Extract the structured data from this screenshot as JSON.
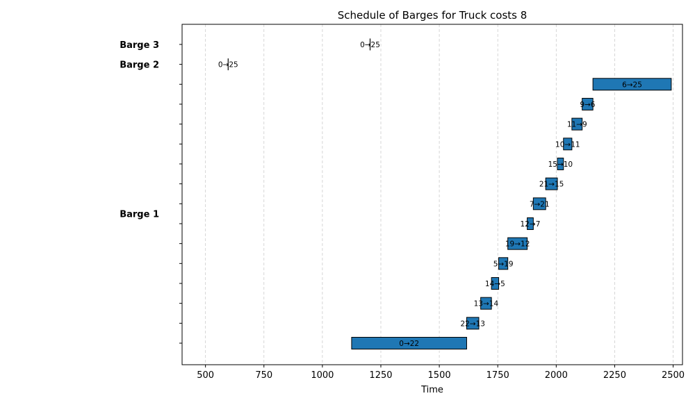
{
  "chart_data": {
    "type": "gantt",
    "title": "Schedule of Barges for Truck costs 8",
    "xlabel": "Time",
    "ylabel": "",
    "xlim": [
      400,
      2540
    ],
    "xticks": [
      500,
      750,
      1000,
      1250,
      1500,
      1750,
      2000,
      2250,
      2500
    ],
    "grid": "vertical-dashed",
    "bar_color": "#1f77b4",
    "rows": 16,
    "groups": [
      {
        "name": "Barge 3",
        "row": 15
      },
      {
        "name": "Barge 2",
        "row": 14
      },
      {
        "name": "Barge 1",
        "row": 6.5
      }
    ],
    "tasks": [
      {
        "label": "0→22",
        "start": 1125,
        "end": 1617,
        "row": 0
      },
      {
        "label": "22→13",
        "start": 1617,
        "end": 1669,
        "row": 1
      },
      {
        "label": "13→14",
        "start": 1677,
        "end": 1723,
        "row": 2
      },
      {
        "label": "14→5",
        "start": 1723,
        "end": 1754,
        "row": 3
      },
      {
        "label": "5→19",
        "start": 1754,
        "end": 1793,
        "row": 4
      },
      {
        "label": "19→12",
        "start": 1793,
        "end": 1876,
        "row": 5
      },
      {
        "label": "12→7",
        "start": 1876,
        "end": 1902,
        "row": 6
      },
      {
        "label": "7→21",
        "start": 1902,
        "end": 1955,
        "row": 7
      },
      {
        "label": "21→15",
        "start": 1955,
        "end": 2005,
        "row": 8
      },
      {
        "label": "15→10",
        "start": 2005,
        "end": 2031,
        "row": 9
      },
      {
        "label": "10→11",
        "start": 2031,
        "end": 2067,
        "row": 10
      },
      {
        "label": "11→9",
        "start": 2067,
        "end": 2111,
        "row": 11
      },
      {
        "label": "9→6",
        "start": 2111,
        "end": 2157,
        "row": 12
      },
      {
        "label": "6→25",
        "start": 2157,
        "end": 2492,
        "row": 13
      },
      {
        "label": "0→25",
        "start": 597,
        "end": 597,
        "row": 14
      },
      {
        "label": "0→25",
        "start": 1204,
        "end": 1204,
        "row": 15
      }
    ]
  }
}
